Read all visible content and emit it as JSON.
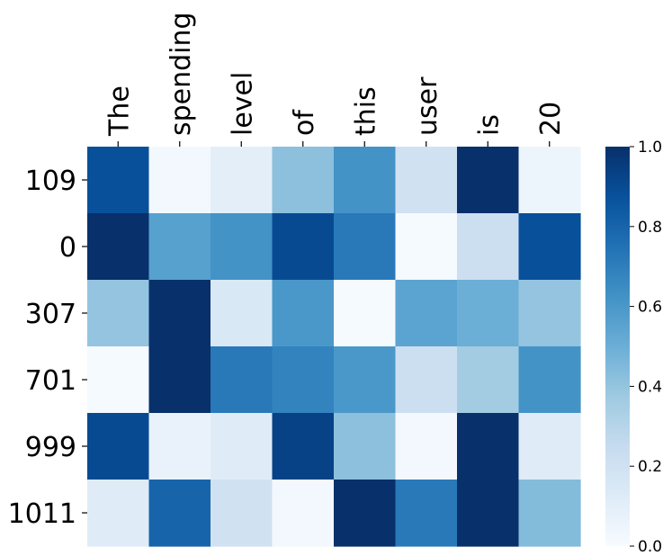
{
  "chart_data": {
    "type": "heatmap",
    "x_labels": [
      "The",
      "spending",
      "level",
      "of",
      "this",
      "user",
      "is",
      "20"
    ],
    "y_labels": [
      "109",
      "0",
      "307",
      "701",
      "999",
      "1011"
    ],
    "values": [
      [
        0.88,
        0.02,
        0.1,
        0.42,
        0.62,
        0.2,
        1.0,
        0.05
      ],
      [
        1.0,
        0.56,
        0.62,
        0.9,
        0.72,
        0.01,
        0.22,
        0.88
      ],
      [
        0.4,
        1.0,
        0.15,
        0.6,
        0.01,
        0.55,
        0.5,
        0.4
      ],
      [
        0.01,
        1.0,
        0.72,
        0.68,
        0.6,
        0.22,
        0.36,
        0.62
      ],
      [
        0.9,
        0.07,
        0.12,
        0.93,
        0.42,
        0.02,
        1.0,
        0.12
      ],
      [
        0.12,
        0.8,
        0.2,
        0.02,
        1.0,
        0.72,
        1.0,
        0.44
      ]
    ],
    "vmin": 0.0,
    "vmax": 1.0,
    "colormap": "Blues",
    "colorbar_ticks": [
      "0.0",
      "0.2",
      "0.4",
      "0.6",
      "0.8",
      "1.0"
    ],
    "colorbar_tick_values": [
      0.0,
      0.2,
      0.4,
      0.6,
      0.8,
      1.0
    ],
    "x_tick_position": "top",
    "grid": false
  }
}
